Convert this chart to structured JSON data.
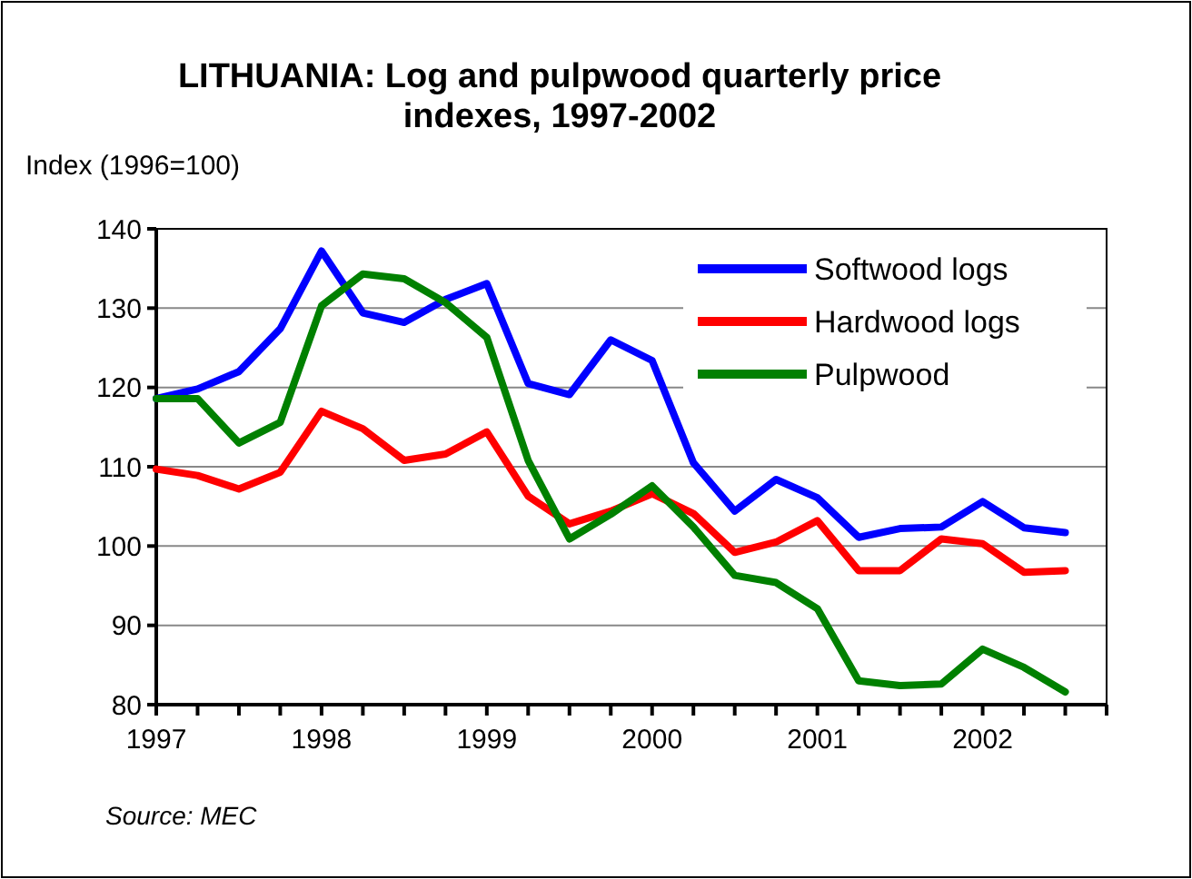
{
  "chart_data": {
    "type": "line",
    "title": "LITHUANIA:  Log and pulpwood quarterly price indexes, 1997-2002",
    "ylabel": "Index (1996=100)",
    "annotations": [
      "Source: MEC"
    ],
    "x": [
      1997,
      1997.25,
      1997.5,
      1997.75,
      1998,
      1998.25,
      1998.5,
      1998.75,
      1999,
      1999.25,
      1999.5,
      1999.75,
      2000,
      2000.25,
      2000.5,
      2000.75,
      2001,
      2001.25,
      2001.5,
      2001.75,
      2002,
      2002.25,
      2002.5
    ],
    "series": [
      {
        "name": "Softwood logs",
        "color": "#0000ff",
        "values": [
          118.6,
          119.8,
          122,
          127.4,
          137.2,
          129.4,
          128.2,
          131.1,
          133.1,
          120.5,
          119.1,
          126,
          123.4,
          110.5,
          104.4,
          108.4,
          106.1,
          101.1,
          102.2,
          102.4,
          105.6,
          102.3,
          101.7
        ]
      },
      {
        "name": "Hardwood logs",
        "color": "#ff0000",
        "values": [
          109.7,
          108.9,
          107.2,
          109.3,
          117,
          114.8,
          110.8,
          111.6,
          114.4,
          106.3,
          102.8,
          104.4,
          106.6,
          104.1,
          99.2,
          100.5,
          103.2,
          96.9,
          96.9,
          100.9,
          100.3,
          96.7,
          96.9
        ]
      },
      {
        "name": "Pulpwood",
        "color": "#008000",
        "values": [
          118.6,
          118.6,
          113,
          115.6,
          130.3,
          134.3,
          133.7,
          130.7,
          126.3,
          110.8,
          100.9,
          104,
          107.6,
          102.4,
          96.3,
          95.4,
          92.1,
          83,
          82.4,
          82.6,
          87,
          84.7,
          81.6
        ]
      }
    ],
    "xlim": [
      1997,
      2002.75
    ],
    "xticks": [
      1997,
      {
        "value": 1997.25,
        "label": null
      },
      {
        "value": 1997.5,
        "label": null
      },
      {
        "value": 1997.75,
        "label": null
      },
      1998,
      {
        "value": 1998.25,
        "label": null
      },
      {
        "value": 1998.5,
        "label": null
      },
      {
        "value": 1998.75,
        "label": null
      },
      1999,
      {
        "value": 1999.25,
        "label": null
      },
      {
        "value": 1999.5,
        "label": null
      },
      {
        "value": 1999.75,
        "label": null
      },
      2000,
      {
        "value": 2000.25,
        "label": null
      },
      {
        "value": 2000.5,
        "label": null
      },
      {
        "value": 2000.75,
        "label": null
      },
      2001,
      {
        "value": 2001.25,
        "label": null
      },
      {
        "value": 2001.5,
        "label": null
      },
      {
        "value": 2001.75,
        "label": null
      },
      2002,
      {
        "value": 2002.25,
        "label": null
      },
      {
        "value": 2002.5,
        "label": null
      },
      {
        "value": 2002.75,
        "label": null
      }
    ],
    "ylim": [
      80,
      140
    ],
    "yticks": [
      80,
      90,
      100,
      110,
      120,
      130,
      140
    ],
    "grid": "y",
    "legend": "top right",
    "marker": "none",
    "line_style": "solid"
  }
}
